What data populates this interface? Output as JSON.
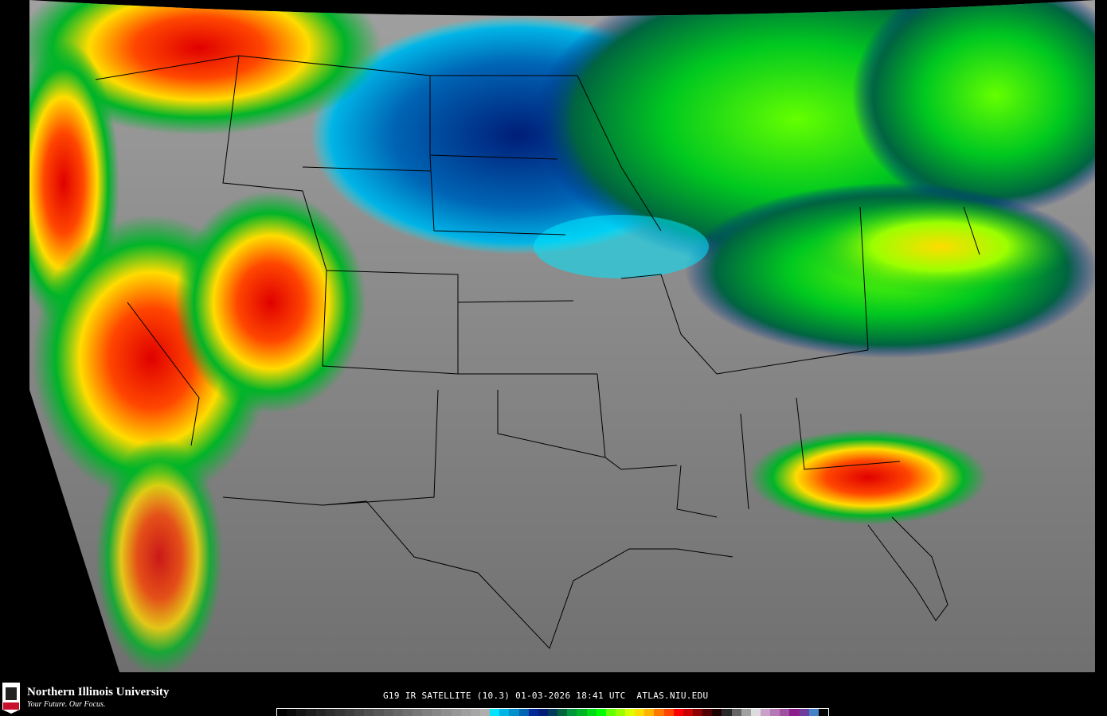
{
  "logo": {
    "name": "Northern Illinois University",
    "tagline": "Your Future. Our Focus.",
    "badge": "NIU"
  },
  "caption": "G19 IR SATELLITE (10.3) 01-03-2026 18:41 UTC  ATLAS.NIU.EDU",
  "colors": {
    "background": "#000000",
    "land_gray": "#8c8c8c",
    "state_lines": "#000000"
  },
  "colorbar": [
    "#000000",
    "#0a0a0a",
    "#151515",
    "#1e1e1e",
    "#262626",
    "#2e2e2e",
    "#363636",
    "#3e3e3e",
    "#464646",
    "#4e4e4e",
    "#565656",
    "#5e5e5e",
    "#666666",
    "#6e6e6e",
    "#767676",
    "#7e7e7e",
    "#868686",
    "#8e8e8e",
    "#969696",
    "#9e9e9e",
    "#a6a6a6",
    "#aeaeae",
    "#00e5ff",
    "#00b4e6",
    "#0090cc",
    "#0064b4",
    "#002896",
    "#001e78",
    "#003c5a",
    "#00643c",
    "#00963c",
    "#00b428",
    "#00dc14",
    "#00ff00",
    "#64ff00",
    "#9bff00",
    "#dcff00",
    "#ffdc00",
    "#ffb400",
    "#ff7800",
    "#ff4600",
    "#ff0000",
    "#c80000",
    "#8c0000",
    "#500000",
    "#1e0000",
    "#282828",
    "#646464",
    "#a0a0a0",
    "#dcdcdc",
    "#c8a0c8",
    "#b478b4",
    "#a050a0",
    "#8c1e8c",
    "#6e3c9b",
    "#4682c8",
    "#000000"
  ]
}
